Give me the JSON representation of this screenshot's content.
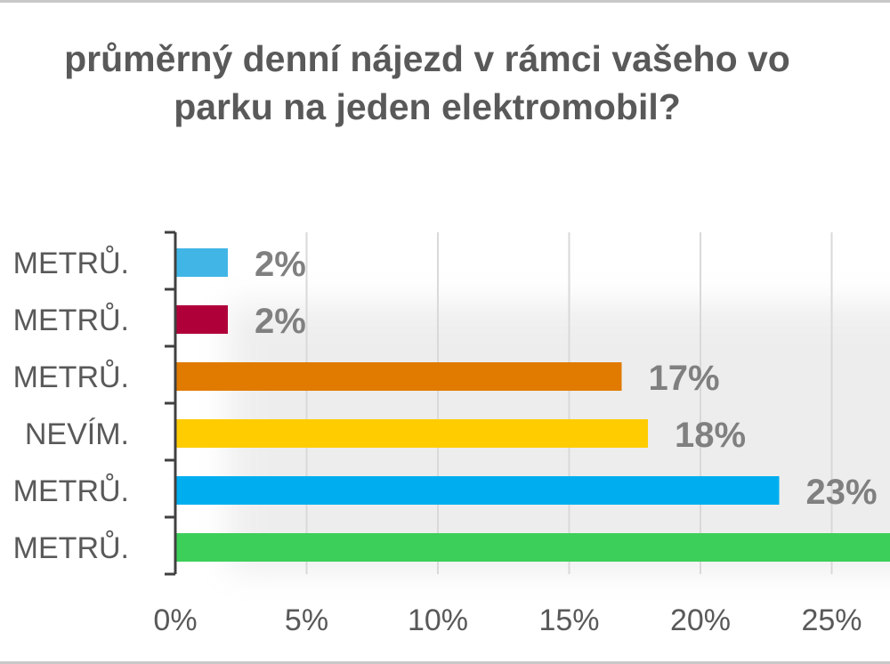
{
  "chart_data": {
    "type": "bar",
    "orientation": "horizontal",
    "title_lines": [
      "průměrný denní nájezd v rámci vašeho vo",
      "parku na jeden elektromobil?"
    ],
    "categories": [
      "METRŮ.",
      "METRŮ.",
      "METRŮ.",
      "NEVÍM.",
      "METRŮ.",
      "METRŮ."
    ],
    "values": [
      2,
      2,
      17,
      18,
      23,
      30
    ],
    "data_labels": [
      "2%",
      "2%",
      "17%",
      "18%",
      "23%",
      ""
    ],
    "colors": [
      "#41b6e6",
      "#b0003a",
      "#e07b00",
      "#ffcc00",
      "#00aeef",
      "#3ccf5a"
    ],
    "x_ticks": [
      "0%",
      "5%",
      "10%",
      "15%",
      "20%",
      "25%"
    ],
    "xlim": [
      0,
      30
    ],
    "grid": "vertical",
    "legend": "none"
  }
}
